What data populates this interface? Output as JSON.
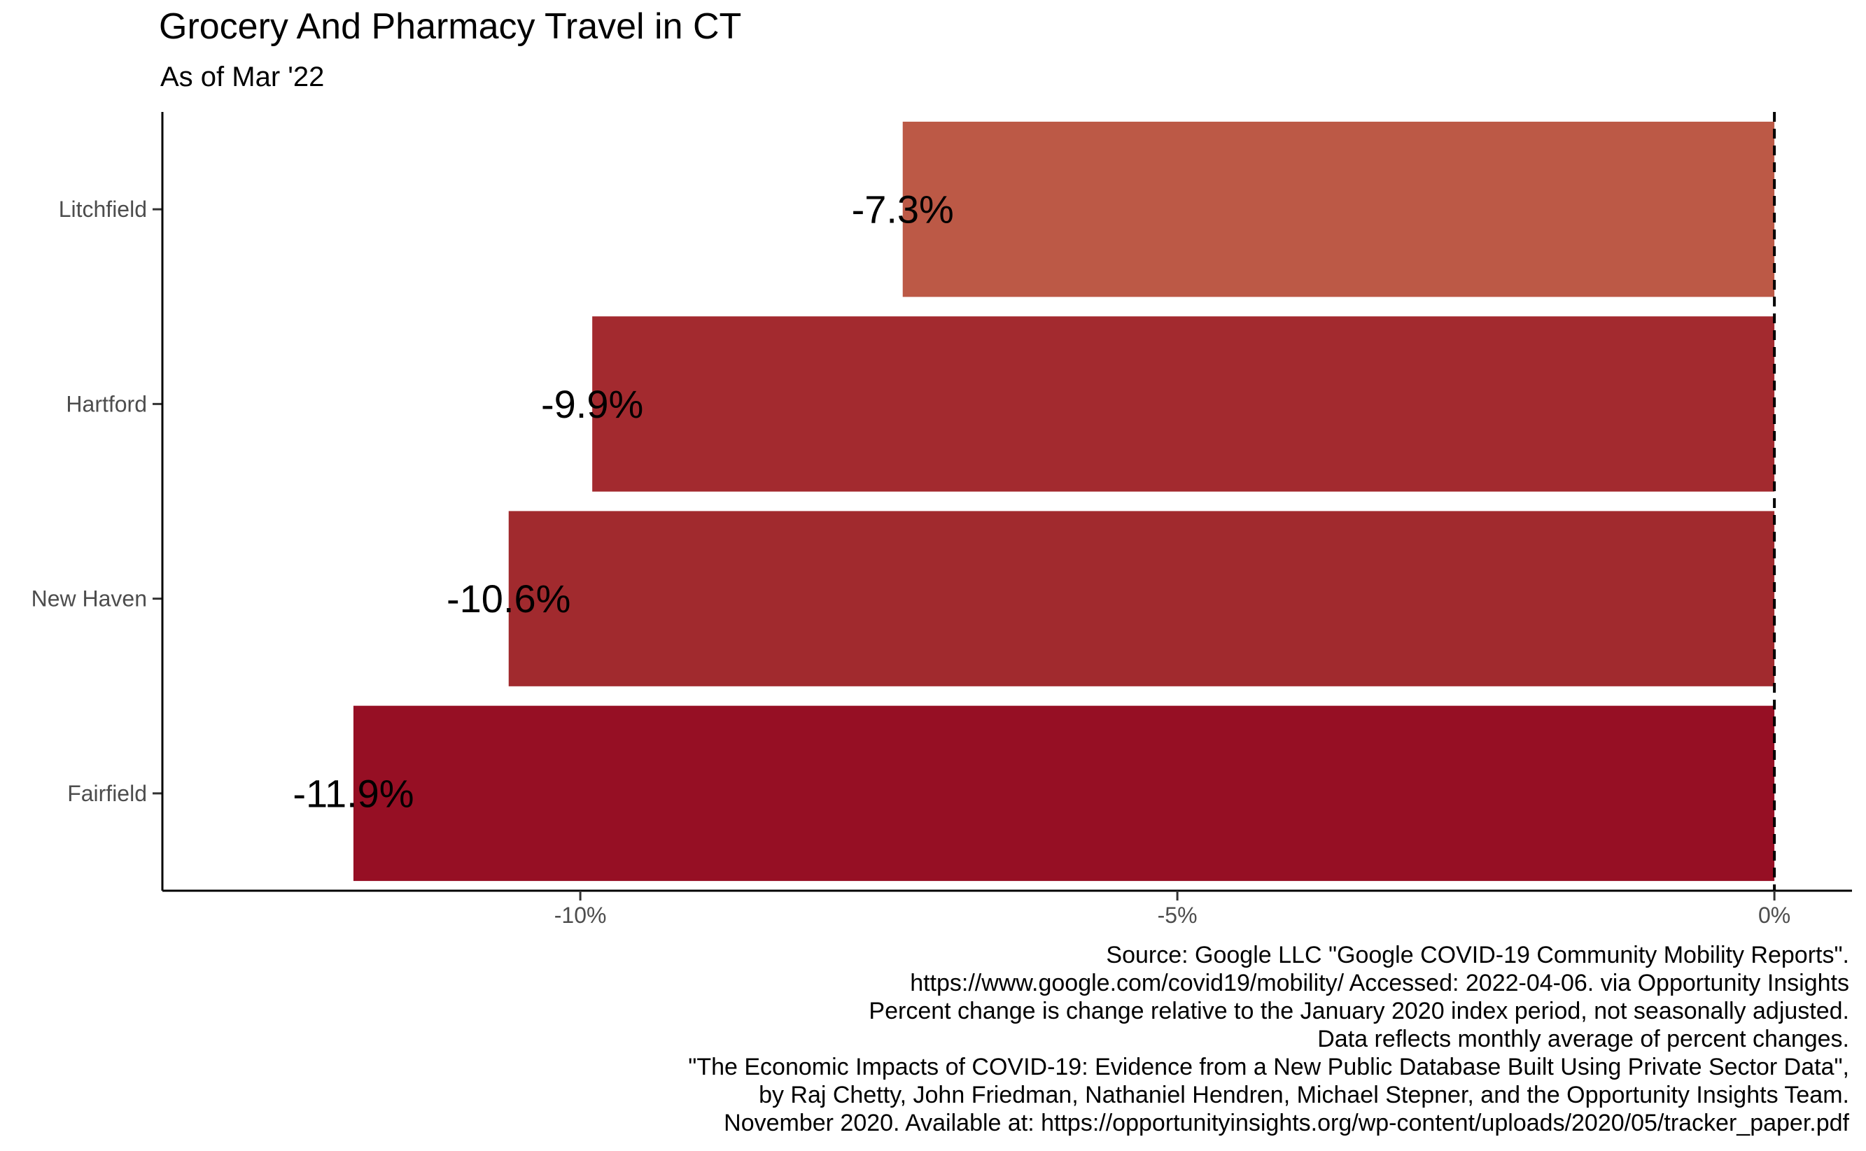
{
  "chart_data": {
    "type": "bar",
    "orientation": "horizontal",
    "title": "Grocery And Pharmacy Travel in CT",
    "subtitle": "As of Mar '22",
    "categories": [
      "Litchfield",
      "Hartford",
      "New Haven",
      "Fairfield"
    ],
    "values": [
      -7.3,
      -9.9,
      -10.6,
      -11.9
    ],
    "value_labels": [
      "-7.3%",
      "-9.9%",
      "-10.6%",
      "-11.9%"
    ],
    "bar_colors": [
      "#bc5946",
      "#a32a2f",
      "#a12a2e",
      "#960f24"
    ],
    "x_ticks": [
      {
        "value": -10,
        "label": "-10%"
      },
      {
        "value": -5,
        "label": "-5%"
      },
      {
        "value": 0,
        "label": "0%"
      }
    ],
    "xlim": [
      -13.5,
      0.65
    ],
    "xlabel": "",
    "ylabel": "",
    "reference_line": {
      "value": 0,
      "style": "dashed"
    },
    "grid": false
  },
  "caption": [
    "Source: Google LLC \"Google COVID-19 Community Mobility Reports\".",
    "https://www.google.com/covid19/mobility/ Accessed: 2022-04-06. via Opportunity Insights",
    "Percent change is change relative to the January 2020 index period, not seasonally adjusted.",
    "Data reflects monthly average of percent changes.",
    "\"The Economic Impacts of COVID-19: Evidence from a New Public Database Built Using Private Sector Data\",",
    "by Raj Chetty, John Friedman, Nathaniel Hendren, Michael Stepner, and the Opportunity Insights Team.",
    "November 2020. Available at: https://opportunityinsights.org/wp-content/uploads/2020/05/tracker_paper.pdf"
  ]
}
